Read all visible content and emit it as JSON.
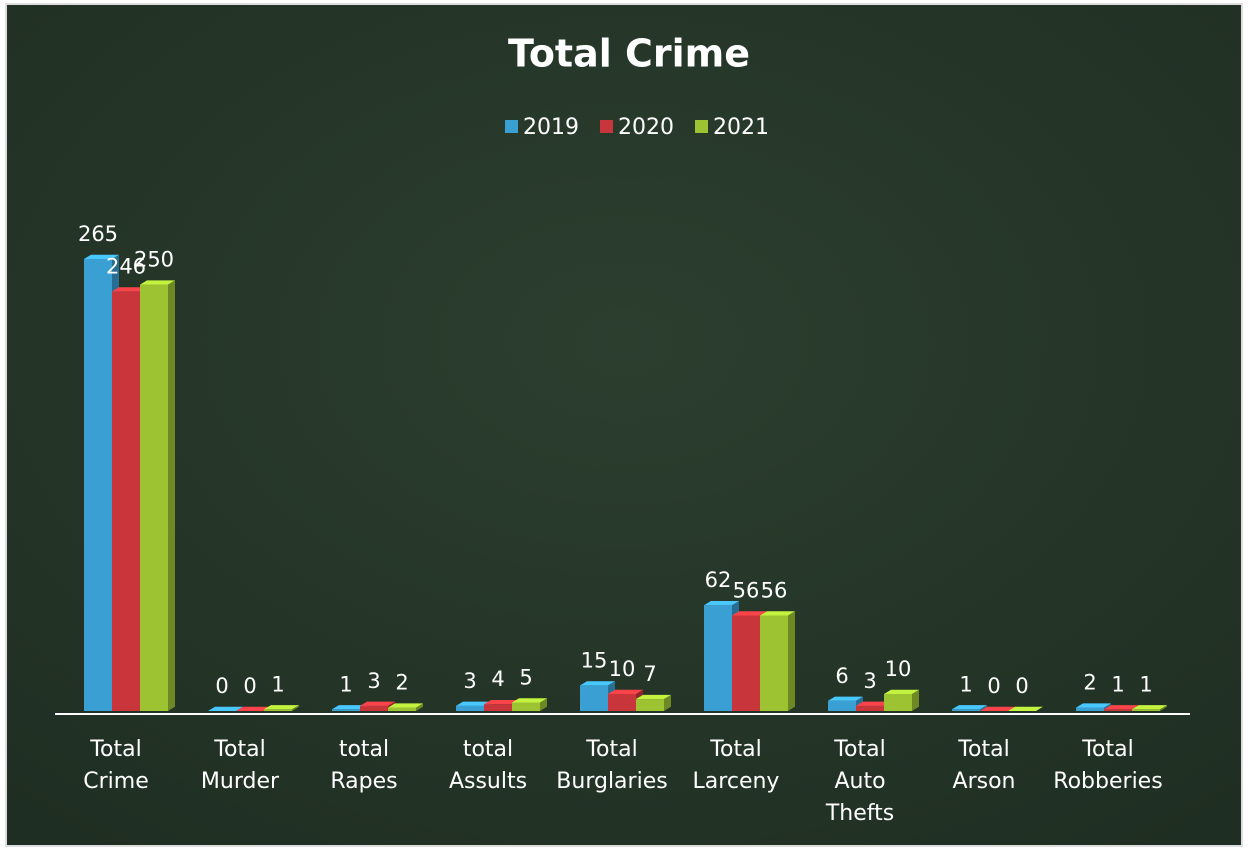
{
  "chart_data": {
    "type": "bar3d",
    "title": "Total Crime",
    "categories": [
      [
        "Total",
        "Crime"
      ],
      [
        "Total",
        "Murder"
      ],
      [
        "total",
        "Rapes"
      ],
      [
        "total",
        "Assults"
      ],
      [
        "Total",
        "Burglaries"
      ],
      [
        "Total",
        "Larceny"
      ],
      [
        "Total",
        "Auto",
        "Thefts"
      ],
      [
        "Total",
        "Arson"
      ],
      [
        "Total",
        "Robberies"
      ]
    ],
    "series": [
      {
        "name": "2019",
        "color": "#3a9fd2",
        "values": [
          265,
          0,
          1,
          3,
          15,
          62,
          6,
          1,
          2
        ]
      },
      {
        "name": "2020",
        "color": "#c8363b",
        "values": [
          246,
          0,
          3,
          4,
          10,
          56,
          3,
          0,
          1
        ]
      },
      {
        "name": "2021",
        "color": "#9dc232",
        "values": [
          250,
          1,
          2,
          5,
          7,
          56,
          10,
          0,
          1
        ]
      }
    ],
    "legend": "top"
  }
}
